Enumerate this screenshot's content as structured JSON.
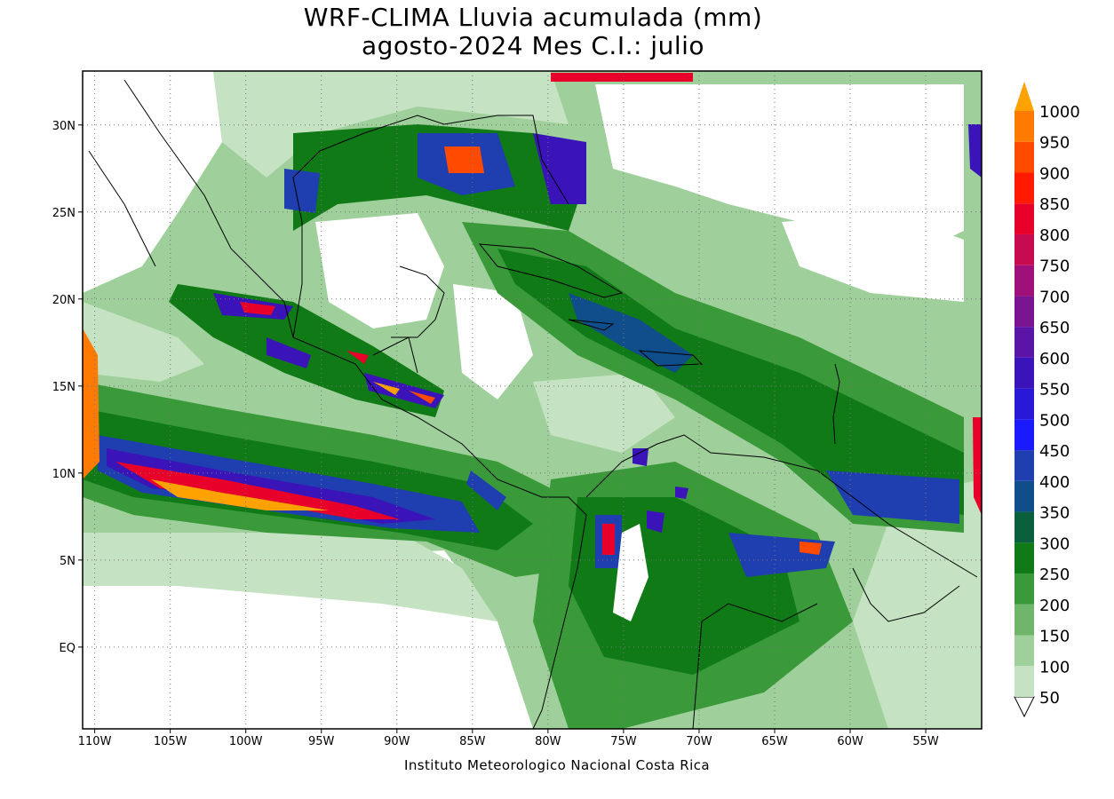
{
  "title_line1": "WRF-CLIMA Lluvia acumulada (mm)",
  "title_line2": "agosto-2024 Mes C.I.: julio",
  "credit": "Instituto Meteorologico Nacional Costa Rica",
  "lon_ticks": [
    {
      "label": "110W",
      "lon": -110
    },
    {
      "label": "105W",
      "lon": -105
    },
    {
      "label": "100W",
      "lon": -100
    },
    {
      "label": "95W",
      "lon": -95
    },
    {
      "label": "90W",
      "lon": -90
    },
    {
      "label": "85W",
      "lon": -85
    },
    {
      "label": "80W",
      "lon": -80
    },
    {
      "label": "75W",
      "lon": -75
    },
    {
      "label": "70W",
      "lon": -70
    },
    {
      "label": "65W",
      "lon": -65
    },
    {
      "label": "60W",
      "lon": -60
    },
    {
      "label": "55W",
      "lon": -55
    }
  ],
  "lat_ticks": [
    {
      "label": "30N",
      "lat": 30
    },
    {
      "label": "25N",
      "lat": 25
    },
    {
      "label": "20N",
      "lat": 20
    },
    {
      "label": "15N",
      "lat": 15
    },
    {
      "label": "10N",
      "lat": 10
    },
    {
      "label": "5N",
      "lat": 5
    },
    {
      "label": "EQ",
      "lat": 0
    }
  ],
  "extent": {
    "lon_min": -110.8,
    "lon_max": -51.3,
    "lat_min": -4.7,
    "lat_max": 33.1
  },
  "colorbar": [
    {
      "label": "50",
      "color": "#c5e3c3"
    },
    {
      "label": "100",
      "color": "#9fd09b"
    },
    {
      "label": "150",
      "color": "#6fb56a"
    },
    {
      "label": "200",
      "color": "#3a9a3a"
    },
    {
      "label": "250",
      "color": "#0f7a16"
    },
    {
      "label": "300",
      "color": "#0a5f3c"
    },
    {
      "label": "350",
      "color": "#104e8b"
    },
    {
      "label": "400",
      "color": "#1f3fb0"
    },
    {
      "label": "450",
      "color": "#1a1aff"
    },
    {
      "label": "500",
      "color": "#2a18d8"
    },
    {
      "label": "550",
      "color": "#3a14b8"
    },
    {
      "label": "600",
      "color": "#5a14a8"
    },
    {
      "label": "650",
      "color": "#7a1490"
    },
    {
      "label": "700",
      "color": "#a0107a"
    },
    {
      "label": "750",
      "color": "#c80a50"
    },
    {
      "label": "800",
      "color": "#e8002a"
    },
    {
      "label": "850",
      "color": "#ff1a00"
    },
    {
      "label": "900",
      "color": "#ff4a00"
    },
    {
      "label": "950",
      "color": "#ff7a00"
    },
    {
      "label": "1000",
      "color": "#ffa200"
    }
  ]
}
